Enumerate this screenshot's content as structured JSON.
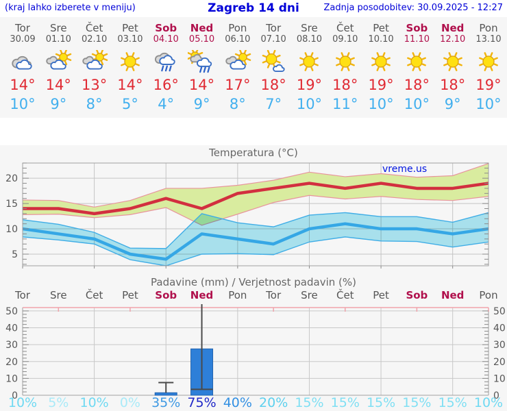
{
  "header": {
    "left_note": "(kraj lahko izberete v meniju)",
    "title": "Zagreb 14 dni",
    "updated": "Zadnja posodobitev: 30.09.2025 - 12:27"
  },
  "watermark": "vreme.us",
  "colors": {
    "header_blue": "#0000d8",
    "day_gray": "#555555",
    "weekend_red": "#b0104c",
    "tmax_red": "#e02a33",
    "tmin_blue": "#41afee",
    "max_band_fill": "#d9ec9f",
    "max_band_edge": "#e8949c",
    "min_band_fill": "#aee9f5",
    "min_band_edge": "#3fade6",
    "bar_blue": "#2e7fd8",
    "panel_bg": "#f6f6f6"
  },
  "forecast": {
    "days": [
      {
        "name": "Tor",
        "date": "30.09",
        "weekend": false,
        "icon": "cloudy",
        "tmax": "14°",
        "tmin": "10°"
      },
      {
        "name": "Sre",
        "date": "01.10",
        "weekend": false,
        "icon": "sun-cloud",
        "tmax": "14°",
        "tmin": "9°"
      },
      {
        "name": "Čet",
        "date": "02.10",
        "weekend": false,
        "icon": "sun-cloud",
        "tmax": "13°",
        "tmin": "8°"
      },
      {
        "name": "Pet",
        "date": "03.10",
        "weekend": false,
        "icon": "sunny",
        "tmax": "14°",
        "tmin": "5°"
      },
      {
        "name": "Sob",
        "date": "04.10",
        "weekend": true,
        "icon": "rain",
        "tmax": "16°",
        "tmin": "4°"
      },
      {
        "name": "Ned",
        "date": "05.10",
        "weekend": true,
        "icon": "sun-rain",
        "tmax": "14°",
        "tmin": "9°"
      },
      {
        "name": "Pon",
        "date": "06.10",
        "weekend": false,
        "icon": "sun-cloud",
        "tmax": "17°",
        "tmin": "8°"
      },
      {
        "name": "Tor",
        "date": "07.10",
        "weekend": false,
        "icon": "mostly-sunny",
        "tmax": "18°",
        "tmin": "7°"
      },
      {
        "name": "Sre",
        "date": "08.10",
        "weekend": false,
        "icon": "sunny",
        "tmax": "19°",
        "tmin": "10°"
      },
      {
        "name": "Čet",
        "date": "09.10",
        "weekend": false,
        "icon": "sunny",
        "tmax": "18°",
        "tmin": "11°"
      },
      {
        "name": "Pet",
        "date": "10.10",
        "weekend": false,
        "icon": "sunny",
        "tmax": "19°",
        "tmin": "10°"
      },
      {
        "name": "Sob",
        "date": "11.10",
        "weekend": true,
        "icon": "sunny",
        "tmax": "18°",
        "tmin": "10°"
      },
      {
        "name": "Ned",
        "date": "12.10",
        "weekend": true,
        "icon": "sunny",
        "tmax": "18°",
        "tmin": "9°"
      },
      {
        "name": "Pon",
        "date": "13.10",
        "weekend": false,
        "icon": "sunny",
        "tmax": "19°",
        "tmin": "10°"
      }
    ]
  },
  "chart_data": [
    {
      "type": "line",
      "title": "Temperatura (°C)",
      "categories": [
        "Tor",
        "Sre",
        "Čet",
        "Pet",
        "Sob",
        "Ned",
        "Pon",
        "Tor",
        "Sre",
        "Čet",
        "Pet",
        "Sob",
        "Ned",
        "Pon"
      ],
      "ylim": [
        2.7,
        23
      ],
      "yticks": [
        5,
        10,
        15,
        20
      ],
      "grid": "horizontal at yticks, vertical every 2nd day",
      "legend_position": "none",
      "watermark": "vreme.us",
      "series": [
        {
          "name": "T max",
          "color": "#d22f3f",
          "values": [
            14,
            14,
            13,
            14,
            16,
            14,
            17,
            18,
            19,
            18,
            19,
            18,
            18,
            19
          ]
        },
        {
          "name": "T max razpon zgornji",
          "color": "#e8949c",
          "values": [
            15.7,
            15.6,
            14.3,
            15.6,
            18.0,
            18.0,
            18.6,
            19.6,
            21.2,
            20.3,
            20.9,
            20.2,
            20.5,
            22.9
          ]
        },
        {
          "name": "T max razpon spodnji",
          "color": "#e8949c",
          "values": [
            12.8,
            12.9,
            12.2,
            12.8,
            14.2,
            10.7,
            12.9,
            15.2,
            16.6,
            15.9,
            16.4,
            15.8,
            15.6,
            16.4
          ]
        },
        {
          "name": "T min",
          "color": "#35a7e5",
          "values": [
            10,
            9,
            8,
            5,
            4,
            9,
            8,
            7,
            10,
            11,
            10,
            10,
            9,
            10
          ]
        },
        {
          "name": "T min razpon zgornji",
          "color": "#3fade6",
          "values": [
            11.8,
            10.9,
            9.3,
            6.2,
            6.1,
            13.0,
            11.2,
            10.4,
            12.7,
            13.2,
            12.4,
            12.4,
            11.3,
            13.2
          ]
        },
        {
          "name": "T min razpon spodnji",
          "color": "#3fade6",
          "values": [
            8.4,
            7.8,
            7.0,
            3.9,
            2.6,
            5.0,
            5.1,
            4.9,
            7.4,
            8.4,
            7.6,
            7.5,
            6.4,
            7.4
          ]
        }
      ]
    },
    {
      "type": "bar",
      "title": "Padavine (mm) / Verjetnost padavin (%)",
      "categories": [
        "Tor",
        "Sre",
        "Čet",
        "Pet",
        "Sob",
        "Ned",
        "Pon",
        "Tor",
        "Sre",
        "Čet",
        "Pet",
        "Sob",
        "Ned",
        "Pon"
      ],
      "weekend_days": [
        4,
        5,
        11,
        12
      ],
      "values_mm": [
        0,
        0,
        0,
        0,
        1.5,
        27.5,
        0,
        0,
        0,
        0,
        0,
        0,
        0,
        0
      ],
      "whiskers": [
        {
          "day_index": 4,
          "top_mm": 7.5,
          "top_cap": true,
          "bottom_mm": 1.5,
          "bottom_cap": false
        },
        {
          "day_index": 5,
          "top_mm": 55,
          "top_cap": false,
          "bottom_mm": 3.5,
          "bottom_cap": true
        }
      ],
      "bar_color": "#2e7fd8",
      "ylim": [
        0,
        52
      ],
      "yticks": [
        0,
        10,
        20,
        30,
        40,
        50
      ],
      "y_axis_both_sides": true,
      "probabilities_pct": [
        10,
        5,
        10,
        0,
        35,
        75,
        40,
        20,
        15,
        15,
        15,
        15,
        15,
        10
      ],
      "prob_display": [
        "10%",
        "5%",
        "10%",
        "0%",
        "35%",
        "75%",
        "40%",
        "20%",
        "15%",
        "15%",
        "15%",
        "15%",
        "15%",
        "10%"
      ],
      "prob_colors": [
        "#6fd9f2",
        "#a9eaf8",
        "#6fd9f2",
        "#a9eaf8",
        "#3e99e3",
        "#2028c8",
        "#3390e3",
        "#5cd0ee",
        "#7fdff3",
        "#7fdff3",
        "#7fdff3",
        "#7fdff3",
        "#7fdff3",
        "#6fd9f2"
      ]
    }
  ]
}
